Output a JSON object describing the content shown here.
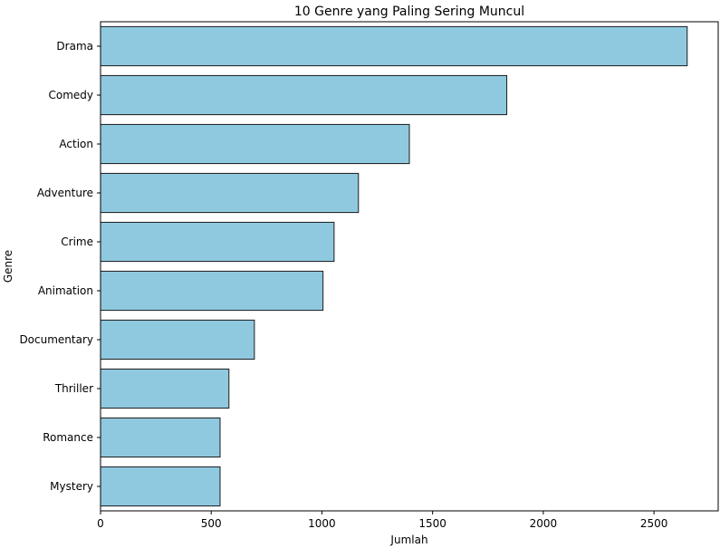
{
  "chart_data": {
    "type": "bar",
    "orientation": "horizontal",
    "title": "10 Genre yang Paling Sering Muncul",
    "xlabel": "Jumlah",
    "ylabel": "Genre",
    "categories": [
      "Drama",
      "Comedy",
      "Action",
      "Adventure",
      "Crime",
      "Animation",
      "Documentary",
      "Thriller",
      "Romance",
      "Mystery"
    ],
    "values": [
      2650,
      1835,
      1395,
      1165,
      1055,
      1005,
      695,
      580,
      540,
      540
    ],
    "xlim": [
      0,
      2790
    ],
    "xticks": [
      0,
      500,
      1000,
      1500,
      2000,
      2500
    ],
    "grid": false,
    "colors": {
      "bar_fill": "#8fc9e0",
      "bar_edge": "#1a1a1a",
      "axis": "#000000"
    }
  }
}
